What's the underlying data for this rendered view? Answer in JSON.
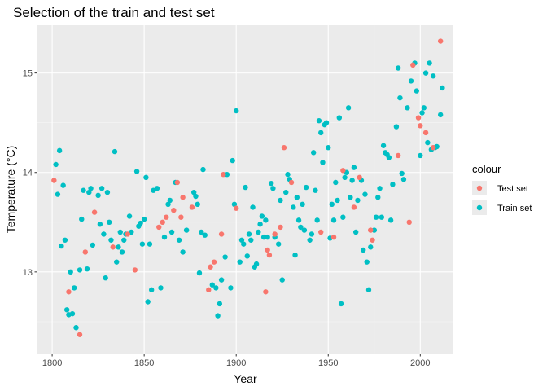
{
  "chart_data": {
    "type": "scatter",
    "title": "Selection of the train and test set",
    "xlabel": "Year",
    "ylabel": "Temperature (°C)",
    "xlim": [
      1792,
      2018
    ],
    "ylim": [
      12.18,
      15.48
    ],
    "xticks": [
      1800,
      1850,
      1900,
      1950,
      2000
    ],
    "yticks": [
      13,
      14,
      15
    ],
    "grid": true,
    "legend": {
      "title": "colour",
      "position": "right"
    },
    "series": [
      {
        "name": "Test set",
        "color": "#F8766D",
        "points": [
          [
            1801,
            13.92
          ],
          [
            1809,
            12.8
          ],
          [
            1815,
            12.37
          ],
          [
            1818,
            13.2
          ],
          [
            1823,
            13.6
          ],
          [
            1833,
            13.25
          ],
          [
            1841,
            13.38
          ],
          [
            1845,
            13.02
          ],
          [
            1858,
            13.45
          ],
          [
            1860,
            13.5
          ],
          [
            1862,
            13.55
          ],
          [
            1866,
            13.62
          ],
          [
            1868,
            13.9
          ],
          [
            1870,
            13.55
          ],
          [
            1871,
            13.75
          ],
          [
            1876,
            13.65
          ],
          [
            1885,
            12.82
          ],
          [
            1886,
            13.05
          ],
          [
            1888,
            13.1
          ],
          [
            1892,
            13.38
          ],
          [
            1893,
            13.98
          ],
          [
            1900,
            13.64
          ],
          [
            1916,
            12.8
          ],
          [
            1917,
            13.22
          ],
          [
            1918,
            13.17
          ],
          [
            1921,
            13.38
          ],
          [
            1924,
            13.45
          ],
          [
            1926,
            14.25
          ],
          [
            1930,
            13.9
          ],
          [
            1946,
            13.4
          ],
          [
            1953,
            13.35
          ],
          [
            1958,
            14.02
          ],
          [
            1964,
            13.65
          ],
          [
            1967,
            13.95
          ],
          [
            1973,
            13.42
          ],
          [
            1974,
            13.32
          ],
          [
            1988,
            14.17
          ],
          [
            1994,
            13.5
          ],
          [
            1996,
            15.08
          ],
          [
            1999,
            14.55
          ],
          [
            2000,
            14.47
          ],
          [
            2003,
            14.4
          ],
          [
            2007,
            14.25
          ],
          [
            2011,
            15.32
          ]
        ]
      },
      {
        "name": "Train set",
        "color": "#00BFC4",
        "points": [
          [
            1802,
            14.08
          ],
          [
            1803,
            13.78
          ],
          [
            1804,
            14.22
          ],
          [
            1805,
            13.26
          ],
          [
            1806,
            13.87
          ],
          [
            1807,
            13.32
          ],
          [
            1808,
            12.62
          ],
          [
            1809,
            12.57
          ],
          [
            1810,
            13.0
          ],
          [
            1811,
            12.58
          ],
          [
            1812,
            12.84
          ],
          [
            1813,
            12.44
          ],
          [
            1815,
            13.02
          ],
          [
            1816,
            13.53
          ],
          [
            1817,
            13.82
          ],
          [
            1819,
            13.03
          ],
          [
            1820,
            13.8
          ],
          [
            1821,
            13.84
          ],
          [
            1822,
            13.27
          ],
          [
            1825,
            13.77
          ],
          [
            1826,
            13.48
          ],
          [
            1827,
            13.84
          ],
          [
            1828,
            13.38
          ],
          [
            1829,
            12.94
          ],
          [
            1830,
            13.8
          ],
          [
            1831,
            13.5
          ],
          [
            1832,
            13.32
          ],
          [
            1834,
            14.21
          ],
          [
            1835,
            13.1
          ],
          [
            1836,
            13.25
          ],
          [
            1837,
            13.4
          ],
          [
            1838,
            13.2
          ],
          [
            1839,
            13.32
          ],
          [
            1840,
            13.38
          ],
          [
            1842,
            13.56
          ],
          [
            1843,
            13.4
          ],
          [
            1846,
            14.01
          ],
          [
            1847,
            13.46
          ],
          [
            1848,
            13.49
          ],
          [
            1849,
            13.28
          ],
          [
            1850,
            13.53
          ],
          [
            1851,
            13.95
          ],
          [
            1852,
            12.7
          ],
          [
            1853,
            13.28
          ],
          [
            1854,
            12.82
          ],
          [
            1855,
            13.82
          ],
          [
            1857,
            13.84
          ],
          [
            1859,
            12.84
          ],
          [
            1861,
            13.35
          ],
          [
            1863,
            13.68
          ],
          [
            1864,
            13.72
          ],
          [
            1865,
            13.4
          ],
          [
            1867,
            13.9
          ],
          [
            1869,
            13.32
          ],
          [
            1871,
            13.2
          ],
          [
            1873,
            13.42
          ],
          [
            1877,
            13.8
          ],
          [
            1878,
            13.76
          ],
          [
            1879,
            13.68
          ],
          [
            1880,
            12.99
          ],
          [
            1881,
            13.4
          ],
          [
            1882,
            14.03
          ],
          [
            1883,
            13.37
          ],
          [
            1887,
            12.87
          ],
          [
            1889,
            12.84
          ],
          [
            1890,
            12.56
          ],
          [
            1891,
            12.68
          ],
          [
            1892,
            12.92
          ],
          [
            1894,
            13.15
          ],
          [
            1895,
            13.98
          ],
          [
            1897,
            12.84
          ],
          [
            1898,
            14.12
          ],
          [
            1899,
            13.68
          ],
          [
            1900,
            14.62
          ],
          [
            1902,
            13.1
          ],
          [
            1903,
            13.32
          ],
          [
            1904,
            13.28
          ],
          [
            1905,
            13.85
          ],
          [
            1906,
            13.16
          ],
          [
            1907,
            13.38
          ],
          [
            1908,
            13.32
          ],
          [
            1909,
            13.65
          ],
          [
            1910,
            13.05
          ],
          [
            1911,
            13.08
          ],
          [
            1912,
            13.4
          ],
          [
            1913,
            13.48
          ],
          [
            1914,
            13.56
          ],
          [
            1915,
            13.35
          ],
          [
            1916,
            13.52
          ],
          [
            1917,
            13.35
          ],
          [
            1919,
            13.89
          ],
          [
            1920,
            13.84
          ],
          [
            1921,
            13.35
          ],
          [
            1923,
            13.28
          ],
          [
            1924,
            13.72
          ],
          [
            1925,
            12.92
          ],
          [
            1927,
            13.8
          ],
          [
            1928,
            13.98
          ],
          [
            1929,
            13.93
          ],
          [
            1931,
            13.65
          ],
          [
            1932,
            13.17
          ],
          [
            1933,
            13.75
          ],
          [
            1934,
            13.52
          ],
          [
            1935,
            13.45
          ],
          [
            1936,
            13.68
          ],
          [
            1937,
            13.42
          ],
          [
            1938,
            13.85
          ],
          [
            1940,
            13.32
          ],
          [
            1941,
            13.38
          ],
          [
            1942,
            14.2
          ],
          [
            1943,
            13.82
          ],
          [
            1944,
            13.52
          ],
          [
            1945,
            14.52
          ],
          [
            1946,
            14.4
          ],
          [
            1947,
            14.1
          ],
          [
            1948,
            14.48
          ],
          [
            1949,
            14.5
          ],
          [
            1950,
            14.25
          ],
          [
            1951,
            13.34
          ],
          [
            1952,
            13.68
          ],
          [
            1953,
            13.52
          ],
          [
            1954,
            13.9
          ],
          [
            1955,
            13.72
          ],
          [
            1956,
            14.55
          ],
          [
            1957,
            12.68
          ],
          [
            1958,
            13.55
          ],
          [
            1959,
            13.95
          ],
          [
            1960,
            14.0
          ],
          [
            1961,
            14.65
          ],
          [
            1962,
            13.75
          ],
          [
            1963,
            13.92
          ],
          [
            1964,
            14.05
          ],
          [
            1965,
            13.4
          ],
          [
            1966,
            13.72
          ],
          [
            1968,
            13.92
          ],
          [
            1969,
            13.22
          ],
          [
            1970,
            13.78
          ],
          [
            1971,
            13.1
          ],
          [
            1972,
            12.82
          ],
          [
            1973,
            13.25
          ],
          [
            1975,
            13.42
          ],
          [
            1976,
            13.55
          ],
          [
            1977,
            13.75
          ],
          [
            1978,
            13.84
          ],
          [
            1979,
            13.55
          ],
          [
            1980,
            14.27
          ],
          [
            1981,
            14.2
          ],
          [
            1982,
            14.18
          ],
          [
            1983,
            14.15
          ],
          [
            1984,
            13.52
          ],
          [
            1985,
            13.88
          ],
          [
            1987,
            14.46
          ],
          [
            1988,
            15.05
          ],
          [
            1989,
            14.75
          ],
          [
            1990,
            13.99
          ],
          [
            1991,
            13.93
          ],
          [
            1993,
            14.65
          ],
          [
            1995,
            14.92
          ],
          [
            1997,
            15.1
          ],
          [
            1998,
            14.82
          ],
          [
            2000,
            14.17
          ],
          [
            2001,
            14.6
          ],
          [
            2002,
            14.65
          ],
          [
            2003,
            15.0
          ],
          [
            2004,
            14.3
          ],
          [
            2005,
            15.1
          ],
          [
            2006,
            14.23
          ],
          [
            2007,
            14.97
          ],
          [
            2008,
            14.25
          ],
          [
            2009,
            14.26
          ],
          [
            2011,
            14.58
          ],
          [
            2012,
            14.85
          ]
        ]
      }
    ]
  }
}
